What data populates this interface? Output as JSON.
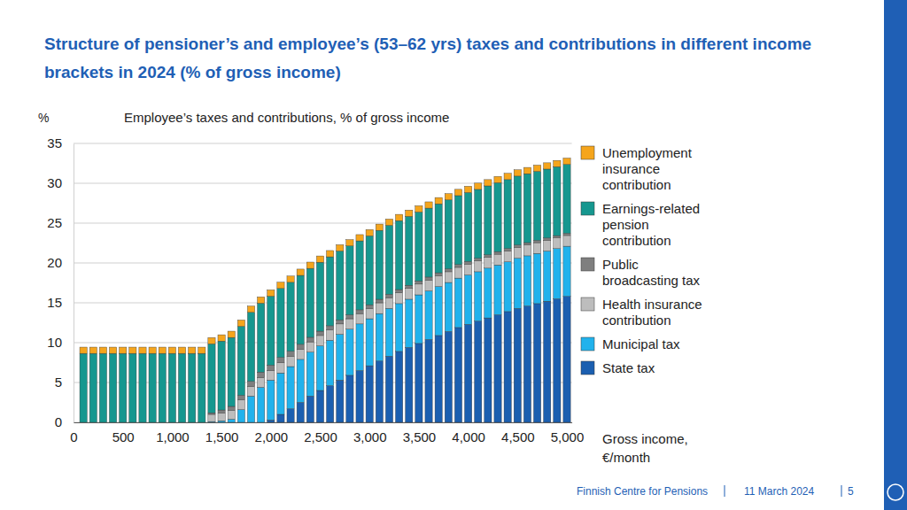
{
  "chart_data": {
    "type": "bar",
    "title": "Structure of pensioner’s and employee’s (53–62 yrs) taxes and contributions in different income brackets in 2024 (% of gross income)",
    "subtitle": "Employee’s taxes and contributions, % of gross income",
    "y_label": "%",
    "x_label": "Gross income, €/month",
    "stacked": true,
    "grid": true,
    "legend": "right",
    "x": [
      100,
      200,
      300,
      400,
      500,
      600,
      700,
      800,
      900,
      1000,
      1100,
      1200,
      1300,
      1400,
      1500,
      1600,
      1700,
      1800,
      1900,
      2000,
      2100,
      2200,
      2300,
      2400,
      2500,
      2600,
      2700,
      2800,
      2900,
      3000,
      3100,
      3200,
      3300,
      3400,
      3500,
      3600,
      3700,
      3800,
      3900,
      4000,
      4100,
      4200,
      4300,
      4400,
      4500,
      4600,
      4700,
      4800,
      4900,
      5000
    ],
    "xlim": [
      0,
      5050
    ],
    "xticks": [
      0,
      500,
      {
        "value": 1000,
        "label": "1,000"
      },
      {
        "value": 1500,
        "label": "1,500"
      },
      {
        "value": 2000,
        "label": "2,000"
      },
      {
        "value": 2500,
        "label": "2,500"
      },
      {
        "value": 3000,
        "label": "3,000"
      },
      {
        "value": 3500,
        "label": "3,500"
      },
      {
        "value": 4000,
        "label": "4,000"
      },
      {
        "value": 4500,
        "label": "4,500"
      },
      {
        "value": 5000,
        "label": "5,000"
      }
    ],
    "ylim": [
      0,
      35
    ],
    "yticks": [
      0,
      5,
      10,
      15,
      20,
      25,
      30,
      35
    ],
    "series": [
      {
        "name": "State tax",
        "color": "#1b5fb0",
        "values": [
          0,
          0,
          0,
          0,
          0,
          0,
          0,
          0,
          0,
          0,
          0,
          0,
          0,
          0,
          0,
          0,
          0,
          0,
          0,
          0.3,
          1.0,
          1.7,
          2.5,
          3.3,
          4.0,
          4.6,
          5.3,
          5.9,
          6.5,
          7.1,
          7.7,
          8.3,
          8.9,
          9.4,
          9.9,
          10.4,
          10.9,
          11.4,
          11.9,
          12.3,
          12.7,
          13.1,
          13.5,
          13.9,
          14.3,
          14.6,
          14.9,
          15.2,
          15.5,
          15.8
        ]
      },
      {
        "name": "Municipal tax",
        "color": "#21b2ec",
        "values": [
          0,
          0,
          0,
          0,
          0,
          0,
          0,
          0,
          0,
          0,
          0,
          0,
          0,
          0.1,
          0.2,
          0.4,
          1.6,
          3.3,
          4.4,
          5.0,
          5.2,
          5.3,
          5.4,
          5.5,
          5.6,
          5.7,
          5.75,
          5.8,
          5.85,
          5.9,
          5.95,
          6.0,
          6.0,
          6.05,
          6.1,
          6.1,
          6.15,
          6.15,
          6.2,
          6.2,
          6.2,
          6.25,
          6.25,
          6.25,
          6.3,
          6.3,
          6.3,
          6.3,
          6.3,
          6.3
        ]
      },
      {
        "name": "Health insurance contribution",
        "color": "#bdbdbd",
        "values": [
          0,
          0,
          0,
          0,
          0,
          0,
          0,
          0,
          0,
          0,
          0,
          0,
          0,
          0.9,
          1.0,
          1.1,
          1.2,
          1.2,
          1.2,
          1.2,
          1.3,
          1.3,
          1.3,
          1.3,
          1.3,
          1.3,
          1.3,
          1.3,
          1.3,
          1.3,
          1.35,
          1.35,
          1.35,
          1.35,
          1.35,
          1.35,
          1.35,
          1.35,
          1.35,
          1.35,
          1.35,
          1.35,
          1.35,
          1.35,
          1.35,
          1.35,
          1.35,
          1.35,
          1.35,
          1.35
        ]
      },
      {
        "name": "Public broadcasting tax",
        "color": "#7f7f7f",
        "values": [
          0,
          0,
          0,
          0,
          0,
          0,
          0,
          0,
          0,
          0,
          0,
          0,
          0,
          0.2,
          0.35,
          0.5,
          0.6,
          0.65,
          0.7,
          0.68,
          0.65,
          0.62,
          0.59,
          0.57,
          0.54,
          0.52,
          0.5,
          0.49,
          0.47,
          0.45,
          0.44,
          0.42,
          0.41,
          0.4,
          0.39,
          0.38,
          0.37,
          0.36,
          0.35,
          0.34,
          0.33,
          0.32,
          0.32,
          0.31,
          0.3,
          0.3,
          0.29,
          0.28,
          0.28,
          0.27
        ]
      },
      {
        "name": "Earnings-related pension contribution",
        "color": "#16978f",
        "values": [
          8.65,
          8.65,
          8.65,
          8.65,
          8.65,
          8.65,
          8.65,
          8.65,
          8.65,
          8.65,
          8.65,
          8.65,
          8.65,
          8.65,
          8.65,
          8.65,
          8.65,
          8.65,
          8.65,
          8.65,
          8.65,
          8.65,
          8.65,
          8.65,
          8.65,
          8.65,
          8.65,
          8.65,
          8.65,
          8.65,
          8.65,
          8.65,
          8.65,
          8.65,
          8.65,
          8.65,
          8.65,
          8.65,
          8.65,
          8.65,
          8.65,
          8.65,
          8.65,
          8.65,
          8.65,
          8.65,
          8.65,
          8.65,
          8.65,
          8.65
        ]
      },
      {
        "name": "Unemployment insurance contribution",
        "color": "#f5a51c",
        "values": [
          0.79,
          0.79,
          0.79,
          0.79,
          0.79,
          0.79,
          0.79,
          0.79,
          0.79,
          0.79,
          0.79,
          0.79,
          0.79,
          0.79,
          0.79,
          0.79,
          0.79,
          0.79,
          0.79,
          0.79,
          0.79,
          0.79,
          0.79,
          0.79,
          0.79,
          0.79,
          0.79,
          0.79,
          0.79,
          0.79,
          0.79,
          0.79,
          0.79,
          0.79,
          0.79,
          0.79,
          0.79,
          0.79,
          0.79,
          0.79,
          0.79,
          0.79,
          0.79,
          0.79,
          0.79,
          0.79,
          0.79,
          0.79,
          0.79,
          0.79
        ]
      }
    ],
    "footer": {
      "organisation": "Finnish Centre for Pensions",
      "date": "11 March 2024",
      "page": 5
    }
  }
}
